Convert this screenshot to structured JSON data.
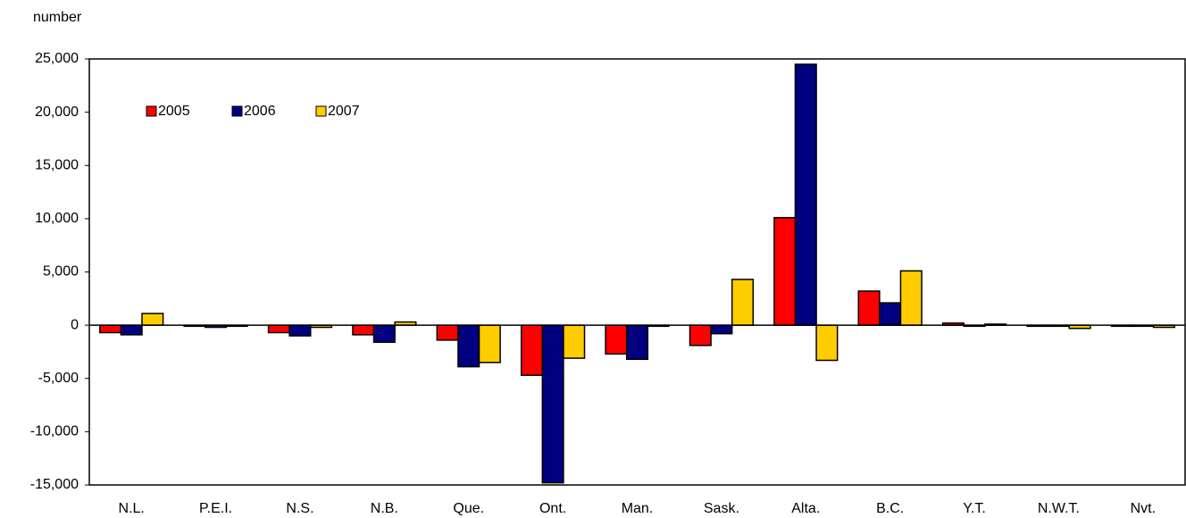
{
  "chart_data": {
    "type": "bar",
    "y_label": "number",
    "categories": [
      "N.L.",
      "P.E.I.",
      "N.S.",
      "N.B.",
      "Que.",
      "Ont.",
      "Man.",
      "Sask.",
      "Alta.",
      "B.C.",
      "Y.T.",
      "N.W.T.",
      "Nvt."
    ],
    "series": [
      {
        "name": "2005",
        "color": "#ff0000",
        "values": [
          -700,
          -100,
          -700,
          -900,
          -1400,
          -4700,
          -2700,
          -1900,
          10100,
          3200,
          200,
          -100,
          -100
        ]
      },
      {
        "name": "2006",
        "color": "#000080",
        "values": [
          -900,
          -200,
          -1000,
          -1600,
          -3900,
          -14800,
          -3200,
          -800,
          24500,
          2100,
          -100,
          -100,
          -100
        ]
      },
      {
        "name": "2007",
        "color": "#ffcc00",
        "values": [
          1100,
          -100,
          -200,
          300,
          -3500,
          -3100,
          -100,
          4300,
          -3300,
          5100,
          100,
          -300,
          -200
        ]
      }
    ],
    "ylim": [
      -15000,
      25000
    ],
    "yticks": [
      {
        "value": -15000,
        "label": "-15,000"
      },
      {
        "value": -10000,
        "label": "-10,000"
      },
      {
        "value": -5000,
        "label": "-5,000"
      },
      0,
      {
        "value": 5000,
        "label": "5,000"
      },
      {
        "value": 10000,
        "label": "10,000"
      },
      {
        "value": 15000,
        "label": "15,000"
      },
      {
        "value": 20000,
        "label": "20,000"
      },
      {
        "value": 25000,
        "label": "25,000"
      }
    ],
    "legend": "upper left",
    "grid": false
  }
}
